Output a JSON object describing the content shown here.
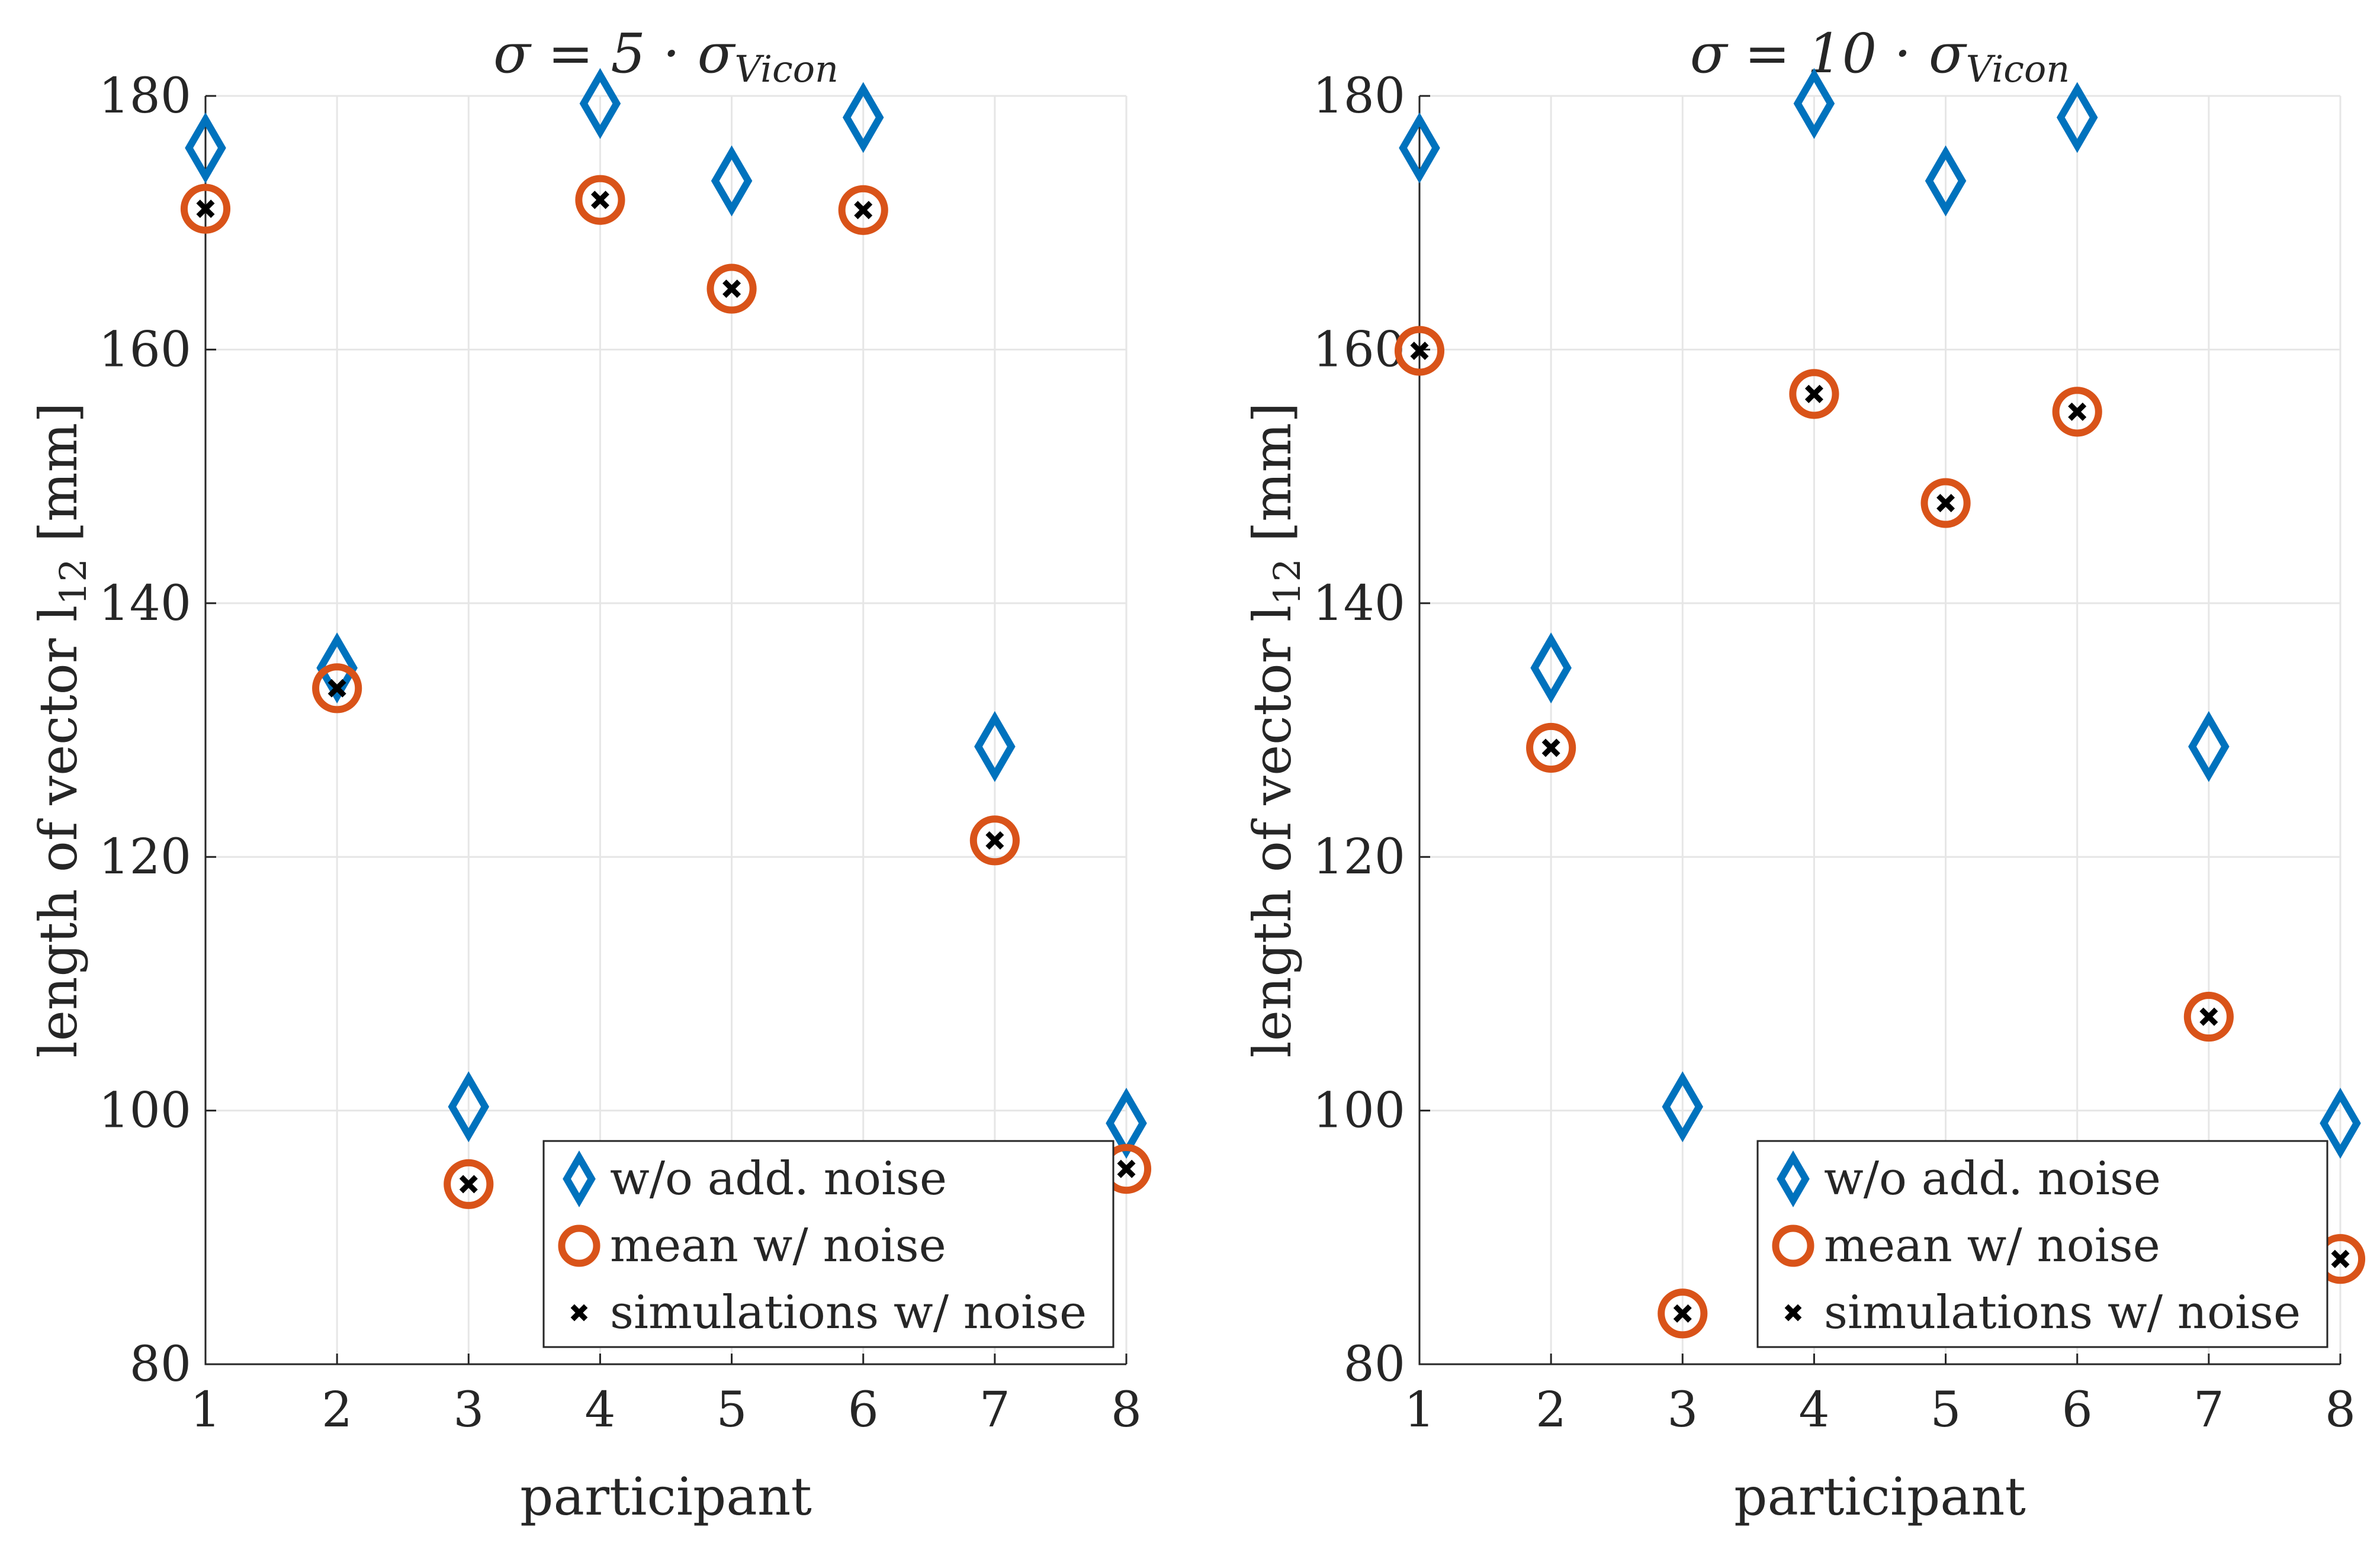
{
  "chart_data": [
    {
      "type": "scatter",
      "title": "σ = 5 · σVicon",
      "title_main": "σ = 5 · σ",
      "title_sub": "Vicon",
      "xlabel": "participant",
      "ylabel": "length of vector l12 [mm]",
      "ylabel_main": "length of vector l",
      "ylabel_sub": "12",
      "ylabel_unit": "[mm]",
      "xlim": [
        1,
        8
      ],
      "ylim": [
        80,
        180
      ],
      "xticks": [
        1,
        2,
        3,
        4,
        5,
        6,
        7,
        8
      ],
      "yticks": [
        80,
        100,
        120,
        140,
        160,
        180
      ],
      "grid": true,
      "legend_position": "bottom-right",
      "x": [
        1,
        2,
        3,
        4,
        5,
        6,
        7,
        8
      ],
      "series": [
        {
          "name": "w/o add. noise",
          "marker": "diamond",
          "color": "#0072BD",
          "values": [
            175.9,
            134.9,
            100.3,
            179.4,
            173.3,
            178.3,
            128.7,
            99.0
          ]
        },
        {
          "name": "mean w/ noise",
          "marker": "circle",
          "color": "#D95319",
          "values": [
            171.1,
            133.3,
            94.2,
            171.8,
            164.8,
            171.0,
            121.3,
            95.4
          ]
        },
        {
          "name": "simulations w/ noise",
          "marker": "x",
          "color": "#000000",
          "values": [
            171.1,
            133.3,
            94.2,
            171.8,
            164.8,
            171.0,
            121.3,
            95.4
          ]
        }
      ]
    },
    {
      "type": "scatter",
      "title": "σ = 10 · σVicon",
      "title_main": "σ = 10 · σ",
      "title_sub": "Vicon",
      "xlabel": "participant",
      "ylabel": "length of vector l12 [mm]",
      "ylabel_main": "length of vector l",
      "ylabel_sub": "12",
      "ylabel_unit": "[mm]",
      "xlim": [
        1,
        8
      ],
      "ylim": [
        80,
        180
      ],
      "xticks": [
        1,
        2,
        3,
        4,
        5,
        6,
        7,
        8
      ],
      "yticks": [
        80,
        100,
        120,
        140,
        160,
        180
      ],
      "grid": true,
      "legend_position": "bottom-right",
      "x": [
        1,
        2,
        3,
        4,
        5,
        6,
        7,
        8
      ],
      "series": [
        {
          "name": "w/o add. noise",
          "marker": "diamond",
          "color": "#0072BD",
          "values": [
            175.9,
            134.9,
            100.3,
            179.4,
            173.3,
            178.3,
            128.7,
            99.0
          ]
        },
        {
          "name": "mean w/ noise",
          "marker": "circle",
          "color": "#D95319",
          "values": [
            159.9,
            128.6,
            84.0,
            156.5,
            147.9,
            155.1,
            107.4,
            88.3
          ]
        },
        {
          "name": "simulations w/ noise",
          "marker": "x",
          "color": "#000000",
          "values": [
            159.9,
            128.6,
            84.0,
            156.5,
            147.9,
            155.1,
            107.4,
            88.3
          ]
        }
      ]
    }
  ]
}
